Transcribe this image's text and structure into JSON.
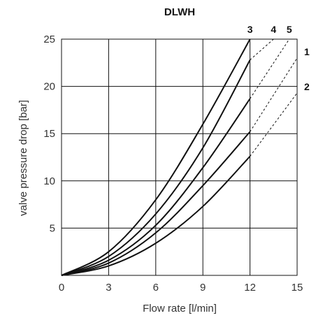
{
  "chart_data": {
    "type": "line",
    "title": "DLWH",
    "xlabel": "Flow rate [l/min]",
    "ylabel": "valve pressure drop [bar]",
    "xlim": [
      0,
      15
    ],
    "ylim": [
      0,
      25
    ],
    "xticks": [
      "0",
      "3",
      "6",
      "9",
      "12",
      "15"
    ],
    "yticks": [
      "5",
      "10",
      "15",
      "20",
      "25"
    ],
    "grid": true,
    "solid_until_x": 12,
    "series": [
      {
        "name": "1",
        "x": [
          0,
          3,
          6,
          9,
          12,
          15
        ],
        "y": [
          0,
          1.3,
          4.5,
          9.5,
          15.2,
          23.0
        ]
      },
      {
        "name": "2",
        "x": [
          0,
          3,
          6,
          9,
          12,
          15
        ],
        "y": [
          0,
          1.0,
          3.4,
          7.3,
          12.6,
          19.3
        ]
      },
      {
        "name": "3",
        "x": [
          0,
          3,
          6,
          9,
          12
        ],
        "y": [
          0,
          2.5,
          8.0,
          16.0,
          25.0
        ]
      },
      {
        "name": "4",
        "x": [
          0,
          3,
          6,
          9,
          12,
          13.5
        ],
        "y": [
          0,
          2.0,
          6.5,
          13.5,
          22.8,
          25.0
        ]
      },
      {
        "name": "5",
        "x": [
          0,
          3,
          6,
          9,
          12,
          14.5
        ],
        "y": [
          0,
          1.6,
          5.3,
          11.4,
          18.7,
          25.0
        ]
      }
    ]
  }
}
